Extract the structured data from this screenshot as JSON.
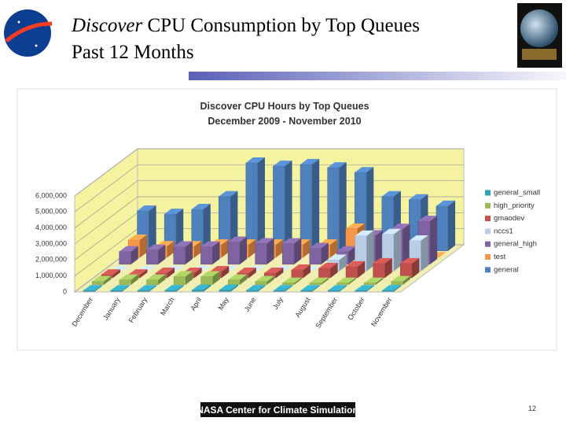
{
  "slide": {
    "title_italic": "Discover",
    "title_rest": " CPU Consumption by Top Queues",
    "subtitle": "Past 12 Months",
    "footer": "NASA Center for Climate Simulation",
    "page_number": "12"
  },
  "chart_data": {
    "type": "bar3d",
    "title": "Discover CPU Hours by Top Queues",
    "subtitle": "December 2009 - November 2010",
    "categories": [
      "December",
      "January",
      "February",
      "March",
      "April",
      "May",
      "June",
      "July",
      "August",
      "September",
      "October",
      "November"
    ],
    "series": [
      {
        "name": "general_small",
        "color": "#31a0b8",
        "values": [
          50000,
          50000,
          50000,
          60000,
          80000,
          80000,
          60000,
          50000,
          50000,
          50000,
          50000,
          60000
        ]
      },
      {
        "name": "high_priority",
        "color": "#9bbb59",
        "values": [
          200000,
          300000,
          300000,
          500000,
          500000,
          300000,
          200000,
          100000,
          100000,
          100000,
          100000,
          200000
        ]
      },
      {
        "name": "gmaodev",
        "color": "#c0504d",
        "values": [
          200000,
          200000,
          300000,
          300000,
          400000,
          300000,
          300000,
          500000,
          600000,
          700000,
          900000,
          900000
        ]
      },
      {
        "name": "nccs1",
        "color": "#b9cde5",
        "values": [
          0,
          0,
          0,
          0,
          0,
          0,
          0,
          0,
          700000,
          2200000,
          2300000,
          1900000
        ]
      },
      {
        "name": "general_high",
        "color": "#8064a2",
        "values": [
          800000,
          900000,
          1100000,
          1100000,
          1400000,
          1300000,
          1300000,
          1000000,
          800000,
          1800000,
          2200000,
          2700000
        ]
      },
      {
        "name": "test",
        "color": "#f79646",
        "values": [
          1100000,
          700000,
          700000,
          800000,
          800000,
          800000,
          800000,
          800000,
          1800000,
          1000000,
          500000,
          0
        ]
      },
      {
        "name": "general",
        "color": "#4f81bd",
        "values": [
          2500000,
          2300000,
          2600000,
          3400000,
          5500000,
          5300000,
          5400000,
          5200000,
          4900000,
          3400000,
          3200000,
          2800000
        ]
      }
    ],
    "ylim": [
      0,
      6000000
    ],
    "yticks": [
      0,
      {
        "value": 1000000,
        "label": "1,000,000"
      },
      {
        "value": 2000000,
        "label": "2,000,000"
      },
      {
        "value": 3000000,
        "label": "3,000,000"
      },
      {
        "value": 4000000,
        "label": "4,000,000"
      },
      {
        "value": 5000000,
        "label": "5,000,000"
      },
      {
        "value": 6000000,
        "label": "6,000,000"
      }
    ],
    "grid": true,
    "legend": "right"
  }
}
